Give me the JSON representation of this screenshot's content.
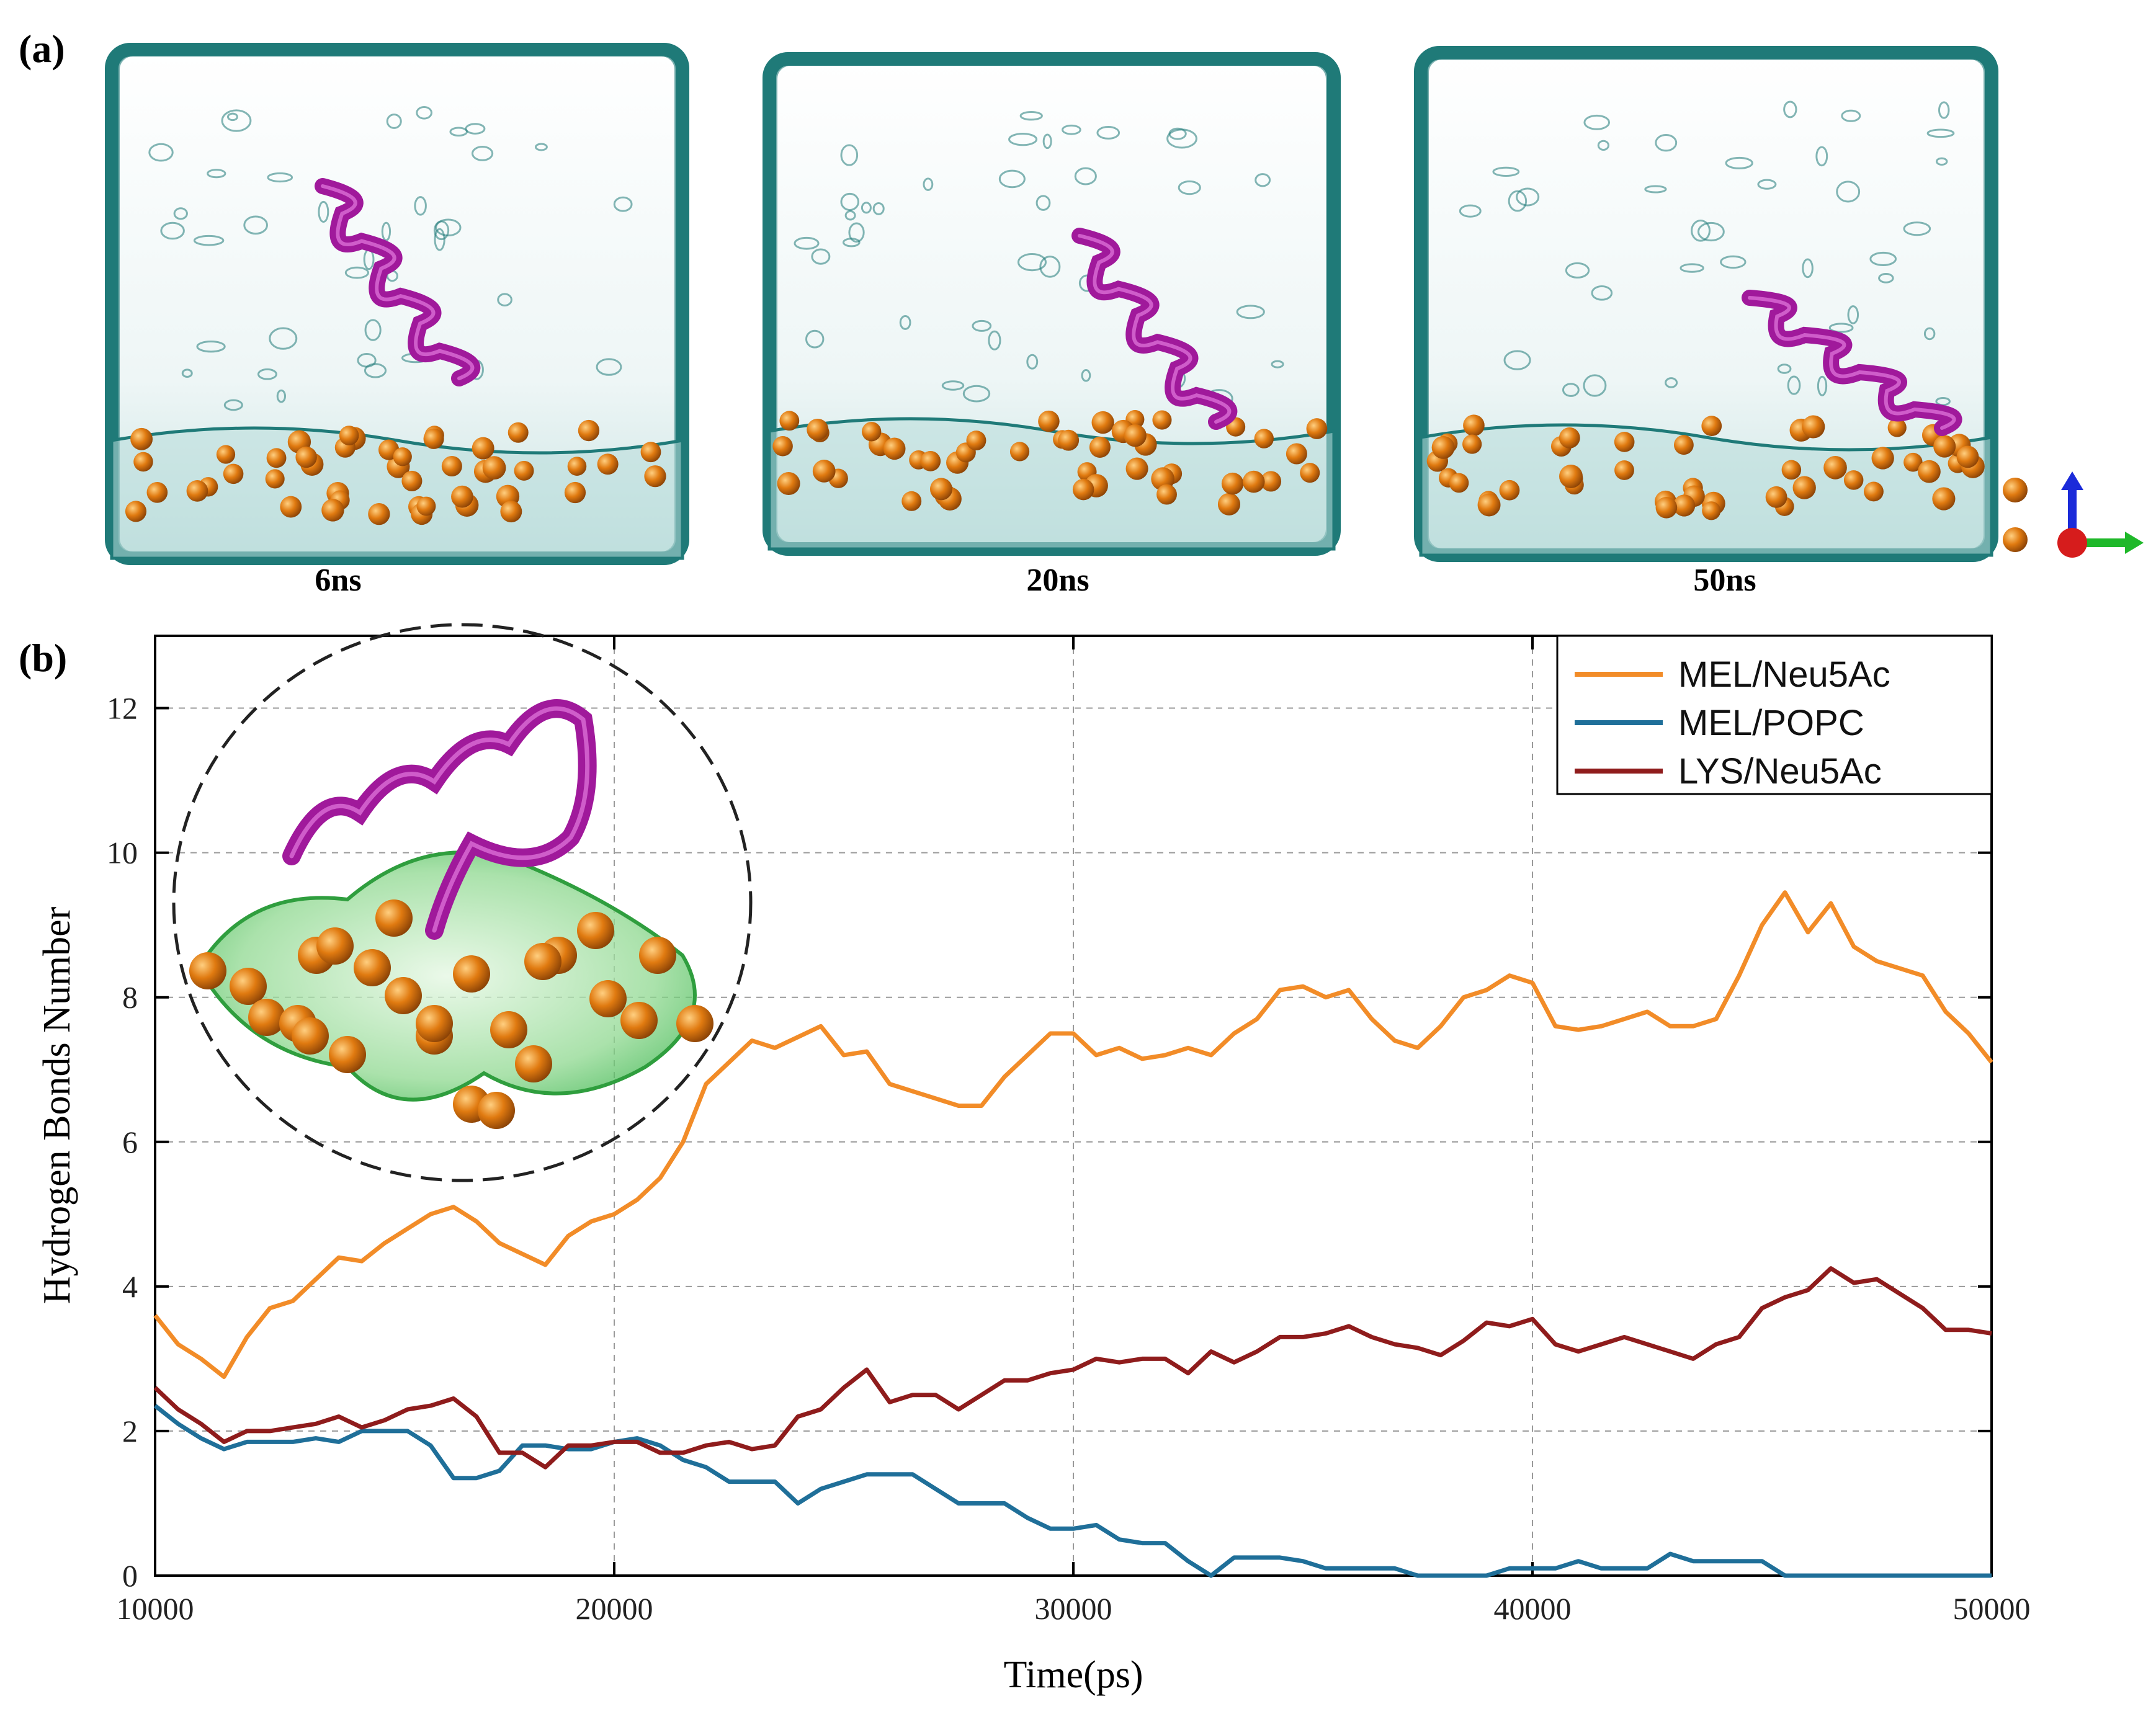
{
  "panel_a": {
    "label": "(a)",
    "snapshots": [
      {
        "time": "6ns"
      },
      {
        "time": "20ns"
      },
      {
        "time": "50ns"
      }
    ]
  },
  "panel_b": {
    "label": "(b)"
  },
  "colors": {
    "water": "#1f7a78",
    "helix": "#a0199b",
    "bead": "#e07a10",
    "membrane_highlight": "#39b54a",
    "mel_neu5ac": "#f28c28",
    "mel_popc": "#1f6f99",
    "lys_neu5ac": "#8f1c1c"
  },
  "chart_data": {
    "type": "line",
    "title": "",
    "xlabel": "Time(ps)",
    "ylabel": "Hydrogen Bonds Number",
    "xlim": [
      10000,
      50000
    ],
    "ylim": [
      0,
      13
    ],
    "xticks": [
      10000,
      20000,
      30000,
      40000,
      50000
    ],
    "yticks": [
      0,
      2,
      4,
      6,
      8,
      10,
      12
    ],
    "grid": true,
    "legend_position": "top-right",
    "series": [
      {
        "name": "MEL/Neu5Ac",
        "color": "#f28c28",
        "x": [
          10000,
          10500,
          11000,
          11500,
          12000,
          12500,
          13000,
          13500,
          14000,
          14500,
          15000,
          15500,
          16000,
          16500,
          17000,
          17500,
          18000,
          18500,
          19000,
          19500,
          20000,
          20500,
          21000,
          21500,
          22000,
          22500,
          23000,
          23500,
          24000,
          24500,
          25000,
          25500,
          26000,
          26500,
          27000,
          27500,
          28000,
          28500,
          29000,
          29500,
          30000,
          30500,
          31000,
          31500,
          32000,
          32500,
          33000,
          33500,
          34000,
          34500,
          35000,
          35500,
          36000,
          36500,
          37000,
          37500,
          38000,
          38500,
          39000,
          39500,
          40000,
          40500,
          41000,
          41500,
          42000,
          42500,
          43000,
          43500,
          44000,
          44500,
          45000,
          45500,
          46000,
          46500,
          47000,
          47500,
          48000,
          48500,
          49000,
          49500,
          50000
        ],
        "y": [
          3.6,
          3.2,
          3.0,
          2.75,
          3.3,
          3.7,
          3.8,
          4.1,
          4.4,
          4.35,
          4.6,
          4.8,
          5.0,
          5.1,
          4.9,
          4.6,
          4.45,
          4.3,
          4.7,
          4.9,
          5.0,
          5.2,
          5.5,
          6.0,
          6.8,
          7.1,
          7.4,
          7.3,
          7.45,
          7.6,
          7.2,
          7.25,
          6.8,
          6.7,
          6.6,
          6.5,
          6.5,
          6.9,
          7.2,
          7.5,
          7.5,
          7.2,
          7.3,
          7.15,
          7.2,
          7.3,
          7.2,
          7.5,
          7.7,
          8.1,
          8.15,
          8.0,
          8.1,
          7.7,
          7.4,
          7.3,
          7.6,
          8.0,
          8.1,
          8.3,
          8.2,
          7.6,
          7.55,
          7.6,
          7.7,
          7.8,
          7.6,
          7.6,
          7.7,
          8.3,
          9.0,
          9.45,
          8.9,
          9.3,
          8.7,
          8.5,
          8.4,
          8.3,
          7.8,
          7.5,
          7.1
        ]
      },
      {
        "name": "MEL/POPC",
        "color": "#1f6f99",
        "x": [
          10000,
          10500,
          11000,
          11500,
          12000,
          12500,
          13000,
          13500,
          14000,
          14500,
          15000,
          15500,
          16000,
          16500,
          17000,
          17500,
          18000,
          18500,
          19000,
          19500,
          20000,
          20500,
          21000,
          21500,
          22000,
          22500,
          23000,
          23500,
          24000,
          24500,
          25000,
          25500,
          26000,
          26500,
          27000,
          27500,
          28000,
          28500,
          29000,
          29500,
          30000,
          30500,
          31000,
          31500,
          32000,
          32500,
          33000,
          33500,
          34000,
          34500,
          35000,
          35500,
          36000,
          36500,
          37000,
          37500,
          38000,
          38500,
          39000,
          39500,
          40000,
          40500,
          41000,
          41500,
          42000,
          42500,
          43000,
          43500,
          44000,
          44500,
          45000,
          45500,
          46000,
          46500,
          47000,
          47500,
          48000,
          48500,
          49000,
          49500,
          50000
        ],
        "y": [
          2.35,
          2.1,
          1.9,
          1.75,
          1.85,
          1.85,
          1.85,
          1.9,
          1.85,
          2.0,
          2.0,
          2.0,
          1.8,
          1.35,
          1.35,
          1.45,
          1.8,
          1.8,
          1.75,
          1.75,
          1.85,
          1.9,
          1.8,
          1.6,
          1.5,
          1.3,
          1.3,
          1.3,
          1.0,
          1.2,
          1.3,
          1.4,
          1.4,
          1.4,
          1.2,
          1.0,
          1.0,
          1.0,
          0.8,
          0.65,
          0.65,
          0.7,
          0.5,
          0.45,
          0.45,
          0.2,
          0.0,
          0.25,
          0.25,
          0.25,
          0.2,
          0.1,
          0.1,
          0.1,
          0.1,
          0.0,
          0.0,
          0.0,
          0.0,
          0.1,
          0.1,
          0.1,
          0.2,
          0.1,
          0.1,
          0.1,
          0.3,
          0.2,
          0.2,
          0.2,
          0.2,
          0.0,
          0.0,
          0.0,
          0.0,
          0.0,
          0.0,
          0.0,
          0.0,
          0.0,
          0.0
        ]
      },
      {
        "name": "LYS/Neu5Ac",
        "color": "#8f1c1c",
        "x": [
          10000,
          10500,
          11000,
          11500,
          12000,
          12500,
          13000,
          13500,
          14000,
          14500,
          15000,
          15500,
          16000,
          16500,
          17000,
          17500,
          18000,
          18500,
          19000,
          19500,
          20000,
          20500,
          21000,
          21500,
          22000,
          22500,
          23000,
          23500,
          24000,
          24500,
          25000,
          25500,
          26000,
          26500,
          27000,
          27500,
          28000,
          28500,
          29000,
          29500,
          30000,
          30500,
          31000,
          31500,
          32000,
          32500,
          33000,
          33500,
          34000,
          34500,
          35000,
          35500,
          36000,
          36500,
          37000,
          37500,
          38000,
          38500,
          39000,
          39500,
          40000,
          40500,
          41000,
          41500,
          42000,
          42500,
          43000,
          43500,
          44000,
          44500,
          45000,
          45500,
          46000,
          46500,
          47000,
          47500,
          48000,
          48500,
          49000,
          49500,
          50000
        ],
        "y": [
          2.6,
          2.3,
          2.1,
          1.85,
          2.0,
          2.0,
          2.05,
          2.1,
          2.2,
          2.05,
          2.15,
          2.3,
          2.35,
          2.45,
          2.2,
          1.7,
          1.7,
          1.5,
          1.8,
          1.8,
          1.85,
          1.85,
          1.7,
          1.7,
          1.8,
          1.85,
          1.75,
          1.8,
          2.2,
          2.3,
          2.6,
          2.85,
          2.4,
          2.5,
          2.5,
          2.3,
          2.5,
          2.7,
          2.7,
          2.8,
          2.85,
          3.0,
          2.95,
          3.0,
          3.0,
          2.8,
          3.1,
          2.95,
          3.1,
          3.3,
          3.3,
          3.35,
          3.45,
          3.3,
          3.2,
          3.15,
          3.05,
          3.25,
          3.5,
          3.45,
          3.55,
          3.2,
          3.1,
          3.2,
          3.3,
          3.2,
          3.1,
          3.0,
          3.2,
          3.3,
          3.7,
          3.85,
          3.95,
          4.25,
          4.05,
          4.1,
          3.9,
          3.7,
          3.4,
          3.4,
          3.35
        ]
      }
    ]
  }
}
